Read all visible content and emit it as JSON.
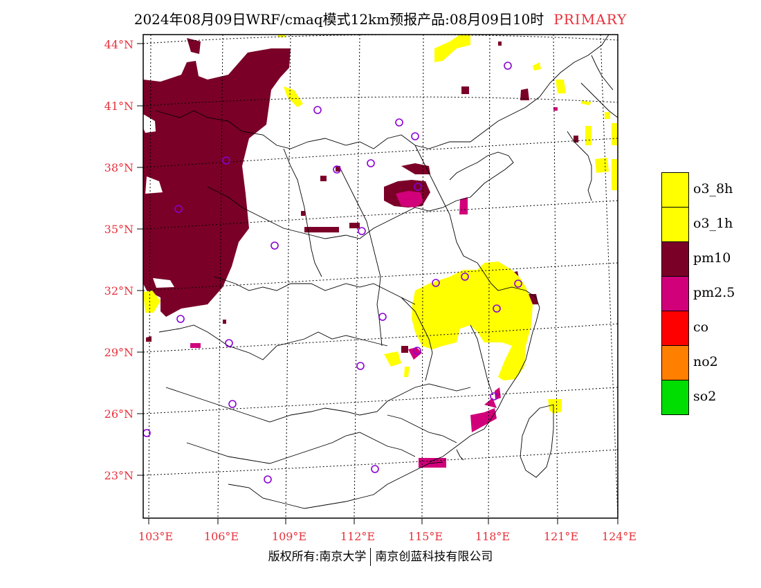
{
  "title": {
    "main": "2024年08月09日WRF/cmaq模式12km预报产品:08月09日10时",
    "tag": "PRIMARY"
  },
  "colors": {
    "o3_8h": "#ffff00",
    "o3_1h": "#ffff00",
    "pm10": "#7a0028",
    "pm2_5": "#d1007a",
    "co": "#ff0000",
    "no2": "#ff7f00",
    "so2": "#00dd00",
    "station": "#8a00d4",
    "label": "#e8303a"
  },
  "map": {
    "lat_labels": [
      "44°N",
      "41°N",
      "38°N",
      "35°N",
      "32°N",
      "29°N",
      "26°N",
      "23°N"
    ],
    "lon_labels": [
      "103°E",
      "106°E",
      "109°E",
      "112°E",
      "115°E",
      "118°E",
      "121°E",
      "124°E"
    ]
  },
  "legend": [
    {
      "key": "o3_8h",
      "label": "o3_8h"
    },
    {
      "key": "o3_1h",
      "label": "o3_1h"
    },
    {
      "key": "pm10",
      "label": "pm10"
    },
    {
      "key": "pm2_5",
      "label": "pm2.5"
    },
    {
      "key": "co",
      "label": "co"
    },
    {
      "key": "no2",
      "label": "no2"
    },
    {
      "key": "so2",
      "label": "so2"
    }
  ],
  "footer": {
    "left": "版权所有:南京大学",
    "right": "南京创蓝科技有限公司"
  }
}
